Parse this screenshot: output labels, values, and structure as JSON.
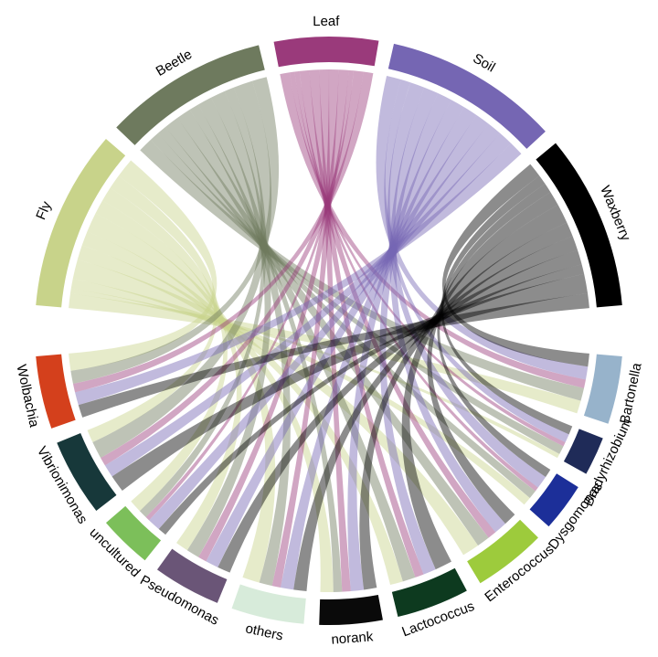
{
  "chart_data": {
    "type": "chord",
    "samples": [
      {
        "name": "Fly",
        "color": "#c8d38a"
      },
      {
        "name": "Beetle",
        "color": "#6e7a5e"
      },
      {
        "name": "Leaf",
        "color": "#9a3a7b"
      },
      {
        "name": "Soil",
        "color": "#7566b3"
      },
      {
        "name": "Waxberry",
        "color": "#000000"
      }
    ],
    "genera": [
      {
        "name": "Bartonella",
        "color": "#97b3cb"
      },
      {
        "name": "Bradyrhizobium",
        "color": "#1f2b58"
      },
      {
        "name": "Dysgomonas",
        "color": "#1c2f99"
      },
      {
        "name": "Enterococcus",
        "color": "#9dcb3c"
      },
      {
        "name": "Lactococcus",
        "color": "#0d3a1f"
      },
      {
        "name": "norank",
        "color": "#0a0a0a"
      },
      {
        "name": "others",
        "color": "#d7ebda"
      },
      {
        "name": "Pseudomonas",
        "color": "#6a5577"
      },
      {
        "name": "uncultured",
        "color": "#7cbf5a"
      },
      {
        "name": "Vibrionimonas",
        "color": "#17383a"
      },
      {
        "name": "Wolbachia",
        "color": "#d4401c"
      }
    ],
    "matrix": [
      [
        3,
        1,
        2,
        4,
        3,
        3,
        4,
        3,
        3,
        3,
        4
      ],
      [
        3,
        2,
        2,
        3,
        3,
        2,
        3,
        3,
        2,
        4,
        3
      ],
      [
        2,
        1,
        1,
        2,
        2,
        2,
        2,
        2,
        1,
        2,
        2
      ],
      [
        3,
        2,
        3,
        3,
        3,
        3,
        3,
        3,
        3,
        3,
        3
      ],
      [
        3,
        2,
        2,
        3,
        4,
        3,
        3,
        3,
        2,
        4,
        3
      ]
    ]
  }
}
